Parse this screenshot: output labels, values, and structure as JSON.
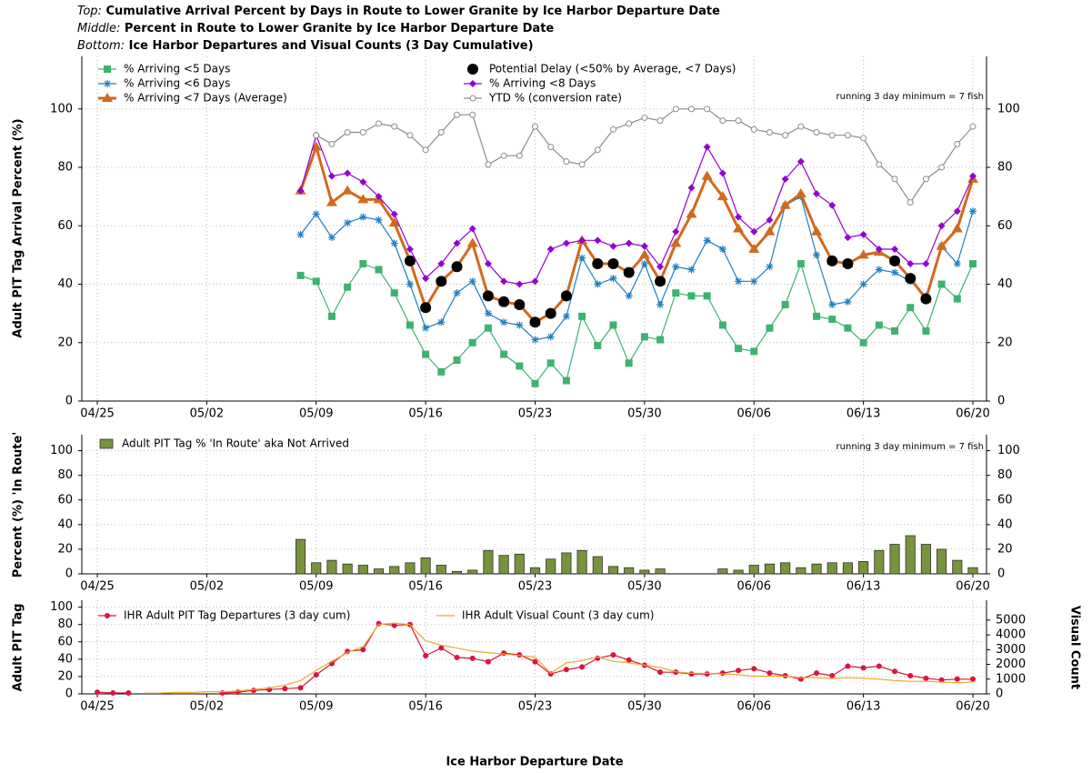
{
  "chart_data": [
    {
      "type": "line",
      "title_prefix": "Top:",
      "title": "Cumulative Arrival Percent by Days in Route to Lower Granite by Ice Harbor Departure Date",
      "ylabel": "Adult PIT Tag Arrival Percent (%)",
      "annotation": "running 3 day minimum = 7 fish",
      "categories": [
        "04/25",
        null,
        null,
        null,
        null,
        null,
        null,
        "05/02",
        null,
        null,
        null,
        null,
        null,
        null,
        "05/09",
        null,
        null,
        null,
        null,
        null,
        null,
        "05/16",
        null,
        null,
        null,
        null,
        null,
        null,
        "05/23",
        null,
        null,
        null,
        null,
        null,
        null,
        "05/30",
        null,
        null,
        null,
        null,
        null,
        null,
        "06/06",
        null,
        null,
        null,
        null,
        null,
        null,
        "06/13",
        null,
        null,
        null,
        null,
        null,
        null,
        "06/20"
      ],
      "ylim": [
        0,
        118
      ],
      "yticks": [
        0,
        20,
        40,
        60,
        80,
        100
      ],
      "grid": true,
      "series": [
        {
          "name": "% Arriving <5 Days",
          "color": "#3cb371",
          "marker": "square",
          "line": true,
          "values": [
            null,
            null,
            null,
            null,
            null,
            null,
            null,
            null,
            null,
            null,
            null,
            null,
            null,
            43,
            41,
            29,
            39,
            47,
            45,
            37,
            26,
            16,
            10,
            14,
            20,
            25,
            16,
            12,
            6,
            13,
            7,
            29,
            19,
            26,
            13,
            22,
            21,
            37,
            36,
            36,
            26,
            18,
            17,
            25,
            33,
            47,
            29,
            28,
            25,
            20,
            26,
            24,
            32,
            24,
            40,
            35,
            47
          ]
        },
        {
          "name": "% Arriving <6 Days",
          "color": "#1f7fc0",
          "marker": "star",
          "line": true,
          "values": [
            null,
            null,
            null,
            null,
            null,
            null,
            null,
            null,
            null,
            null,
            null,
            null,
            null,
            57,
            64,
            56,
            61,
            63,
            62,
            54,
            40,
            25,
            27,
            37,
            41,
            30,
            27,
            26,
            21,
            22,
            29,
            49,
            40,
            42,
            36,
            47,
            33,
            46,
            45,
            55,
            52,
            41,
            41,
            46,
            67,
            70,
            50,
            33,
            34,
            40,
            45,
            44,
            41,
            36,
            53,
            47,
            65
          ]
        },
        {
          "name": "% Arriving <7 Days (Average)",
          "color": "#d2691e",
          "marker": "triangle",
          "line": true,
          "values": [
            null,
            null,
            null,
            null,
            null,
            null,
            null,
            null,
            null,
            null,
            null,
            null,
            null,
            72,
            87,
            68,
            72,
            69,
            69,
            61,
            48,
            32,
            41,
            46,
            54,
            36,
            34,
            33,
            27,
            30,
            36,
            55,
            47,
            47,
            44,
            50,
            41,
            54,
            64,
            77,
            70,
            59,
            52,
            58,
            67,
            71,
            58,
            48,
            47,
            50,
            51,
            48,
            42,
            35,
            53,
            59,
            76
          ]
        },
        {
          "name": "Potential Delay (<50% by Average, <7 Days)",
          "color": "#000000",
          "marker": "dot",
          "line": false,
          "values": [
            null,
            null,
            null,
            null,
            null,
            null,
            null,
            null,
            null,
            null,
            null,
            null,
            null,
            null,
            null,
            null,
            null,
            null,
            null,
            null,
            48,
            32,
            41,
            46,
            null,
            36,
            34,
            33,
            27,
            30,
            36,
            null,
            47,
            47,
            44,
            null,
            41,
            null,
            null,
            null,
            null,
            null,
            null,
            null,
            null,
            null,
            null,
            48,
            47,
            null,
            null,
            48,
            42,
            35,
            null,
            null,
            null
          ]
        },
        {
          "name": "% Arriving <8 Days",
          "color": "#9400d3",
          "marker": "diamond",
          "line": true,
          "values": [
            null,
            null,
            null,
            null,
            null,
            null,
            null,
            null,
            null,
            null,
            null,
            null,
            null,
            72,
            91,
            77,
            78,
            75,
            70,
            64,
            52,
            42,
            47,
            54,
            59,
            47,
            41,
            40,
            41,
            52,
            54,
            55,
            55,
            53,
            54,
            53,
            46,
            58,
            73,
            87,
            78,
            63,
            58,
            62,
            76,
            82,
            71,
            67,
            56,
            57,
            52,
            52,
            47,
            47,
            60,
            65,
            77
          ]
        },
        {
          "name": "YTD % (conversion rate)",
          "color": "#8c8c8c",
          "marker": "circle",
          "line": true,
          "values": [
            null,
            null,
            null,
            null,
            null,
            null,
            null,
            null,
            null,
            null,
            null,
            null,
            null,
            null,
            91,
            88,
            92,
            92,
            95,
            94,
            91,
            86,
            92,
            98,
            98,
            81,
            84,
            84,
            94,
            87,
            82,
            81,
            86,
            93,
            95,
            97,
            96,
            100,
            100,
            100,
            96,
            96,
            93,
            92,
            91,
            94,
            92,
            91,
            91,
            90,
            81,
            76,
            68,
            76,
            80,
            88,
            94
          ]
        }
      ]
    },
    {
      "type": "bar",
      "title_prefix": "Middle:",
      "title": "Percent in Route to Lower Granite by Ice Harbor Departure Date",
      "ylabel": "Percent (%) 'In Route'",
      "annotation": "running 3 day minimum = 7 fish",
      "categories": [
        "04/25",
        null,
        null,
        null,
        null,
        null,
        null,
        "05/02",
        null,
        null,
        null,
        null,
        null,
        null,
        "05/09",
        null,
        null,
        null,
        null,
        null,
        null,
        "05/16",
        null,
        null,
        null,
        null,
        null,
        null,
        "05/23",
        null,
        null,
        null,
        null,
        null,
        null,
        "05/30",
        null,
        null,
        null,
        null,
        null,
        null,
        "06/06",
        null,
        null,
        null,
        null,
        null,
        null,
        "06/13",
        null,
        null,
        null,
        null,
        null,
        null,
        "06/20"
      ],
      "ylim": [
        0,
        113
      ],
      "yticks": [
        0,
        20,
        40,
        60,
        80,
        100
      ],
      "grid": true,
      "series": [
        {
          "name": "Adult PIT Tag % 'In Route' aka Not Arrived",
          "color": "#77933c",
          "values": [
            null,
            null,
            null,
            null,
            null,
            null,
            null,
            null,
            null,
            null,
            null,
            null,
            null,
            28,
            9,
            11,
            8,
            7,
            4,
            6,
            9,
            13,
            7,
            2,
            3,
            19,
            15,
            16,
            5,
            12,
            17,
            19,
            14,
            6,
            5,
            3,
            4,
            0,
            0,
            0,
            4,
            3,
            7,
            8,
            9,
            5,
            8,
            9,
            9,
            10,
            19,
            24,
            31,
            24,
            20,
            11,
            5
          ]
        }
      ]
    },
    {
      "type": "line",
      "title_prefix": "Bottom:",
      "title": "Ice Harbor Departures and Visual Counts (3 Day Cumulative)",
      "ylabel": "Adult PIT Tag",
      "y2label": "Visual Count",
      "xlabel": "Ice Harbor Departure Date",
      "categories": [
        "04/25",
        null,
        null,
        null,
        null,
        null,
        null,
        "05/02",
        null,
        null,
        null,
        null,
        null,
        null,
        "05/09",
        null,
        null,
        null,
        null,
        null,
        null,
        "05/16",
        null,
        null,
        null,
        null,
        null,
        null,
        "05/23",
        null,
        null,
        null,
        null,
        null,
        null,
        "05/30",
        null,
        null,
        null,
        null,
        null,
        null,
        "06/06",
        null,
        null,
        null,
        null,
        null,
        null,
        "06/13",
        null,
        null,
        null,
        null,
        null,
        null,
        "06/20"
      ],
      "ylim": [
        0,
        108
      ],
      "yticks": [
        0,
        20,
        40,
        60,
        80,
        100
      ],
      "y2lim": [
        0,
        6350
      ],
      "y2ticks": [
        0,
        1000,
        2000,
        3000,
        4000,
        5000
      ],
      "grid": true,
      "series": [
        {
          "name": "IHR Adult PIT Tag Departures (3 day cum)",
          "color": "#dc143c",
          "marker": "dot-small",
          "line": true,
          "values": [
            2,
            1,
            1,
            null,
            null,
            null,
            null,
            null,
            1,
            2,
            4,
            5,
            6,
            7,
            22,
            35,
            49,
            51,
            81,
            79,
            80,
            44,
            53,
            42,
            41,
            37,
            47,
            45,
            37,
            23,
            28,
            31,
            41,
            45,
            39,
            33,
            25,
            25,
            23,
            23,
            24,
            27,
            29,
            24,
            21,
            17,
            24,
            21,
            32,
            30,
            32,
            26,
            21,
            18,
            16,
            17,
            17
          ]
        },
        {
          "name": "IHR Adult Visual Count (3 day cum)",
          "color": "#f0a830",
          "marker": "none",
          "line": true,
          "axis": "y2",
          "values": [
            null,
            null,
            null,
            50,
            50,
            100,
            100,
            150,
            150,
            200,
            300,
            400,
            600,
            900,
            1600,
            2200,
            2800,
            3200,
            4700,
            4800,
            4700,
            3600,
            3300,
            3100,
            2900,
            2800,
            2700,
            2600,
            2500,
            1400,
            2100,
            2250,
            2500,
            2200,
            2100,
            1950,
            1800,
            1500,
            1400,
            1400,
            1350,
            1300,
            1200,
            1200,
            1200,
            1100,
            1100,
            1050,
            1100,
            1050,
            1000,
            900,
            850,
            850,
            800,
            750,
            800
          ]
        }
      ]
    }
  ]
}
